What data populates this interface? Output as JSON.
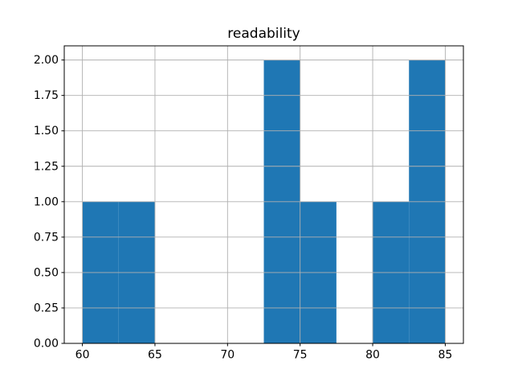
{
  "chart_data": {
    "type": "bar",
    "subtype": "histogram",
    "title": "readability",
    "xlabel": "",
    "ylabel": "",
    "bin_edges": [
      60,
      62.5,
      65,
      67.5,
      70,
      72.5,
      75,
      77.5,
      80,
      82.5,
      85
    ],
    "counts": [
      1,
      1,
      0,
      0,
      0,
      2,
      1,
      0,
      1,
      2
    ],
    "xticks": [
      60,
      65,
      70,
      75,
      80,
      85
    ],
    "xtick_labels": [
      "60",
      "65",
      "70",
      "75",
      "80",
      "85"
    ],
    "yticks": [
      0,
      0.25,
      0.5,
      0.75,
      1.0,
      1.25,
      1.5,
      1.75,
      2.0
    ],
    "ytick_labels": [
      "0.00",
      "0.25",
      "0.50",
      "0.75",
      "1.00",
      "1.25",
      "1.50",
      "1.75",
      "2.00"
    ],
    "xlim": [
      58.75,
      86.25
    ],
    "ylim": [
      0,
      2.1
    ],
    "grid": true,
    "legend": null,
    "colors": {
      "bar": "#1f77b4",
      "grid": "#b0b0b0",
      "spine": "#000000",
      "background": "#ffffff",
      "text": "#000000"
    }
  }
}
